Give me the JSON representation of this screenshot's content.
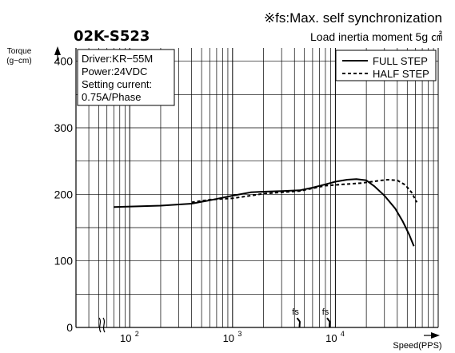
{
  "chart_data": {
    "type": "line",
    "note": "※fs:Max. self synchronization",
    "model": "02K-S523",
    "load": "Load inertia moment 5g ㎠",
    "ylabel_top": "Torque",
    "ylabel_unit": "(g−cm)",
    "xlabel": "Speed(PPS)",
    "x_scale": "log",
    "xlim": [
      30,
      100000
    ],
    "ylim": [
      0,
      420
    ],
    "y_ticks": [
      0,
      100,
      200,
      300,
      400
    ],
    "x_ticks": [
      {
        "value": 100,
        "base": "10",
        "exp": "2"
      },
      {
        "value": 1000,
        "base": "10",
        "exp": "3"
      },
      {
        "value": 10000,
        "base": "10",
        "exp": "4"
      }
    ],
    "grid": true,
    "conditions": [
      "Driver:KR−55M",
      "Power:24VDC",
      "Setting current:",
      "0.75A/Phase"
    ],
    "legend": {
      "position": "top-right"
    },
    "series": [
      {
        "name": "FULL STEP",
        "style": "solid",
        "x": [
          70,
          200,
          400,
          600,
          1000,
          1500,
          2000,
          3000,
          4500,
          6000,
          8000,
          10000,
          13000,
          16000,
          20000,
          24000,
          30000,
          38000,
          45000,
          52000,
          58000
        ],
        "y": [
          181,
          183,
          186,
          191,
          198,
          203,
          204,
          205,
          206,
          210,
          215,
          219,
          222,
          223,
          221,
          212,
          198,
          179,
          160,
          140,
          122
        ]
      },
      {
        "name": "HALF STEP",
        "style": "dashed",
        "x": [
          400,
          600,
          1000,
          1500,
          2000,
          3000,
          4500,
          6000,
          8000,
          12000,
          18000,
          25000,
          32000,
          40000,
          48000,
          55000,
          62000
        ],
        "y": [
          188,
          192,
          194,
          198,
          201,
          203,
          205,
          209,
          213,
          215,
          217,
          220,
          222,
          221,
          214,
          203,
          188
        ]
      }
    ],
    "fs_markers": [
      {
        "label": "fs",
        "x": 4400,
        "y_top": 25
      },
      {
        "label": "fs",
        "x": 8600,
        "y_top": 25
      }
    ]
  }
}
